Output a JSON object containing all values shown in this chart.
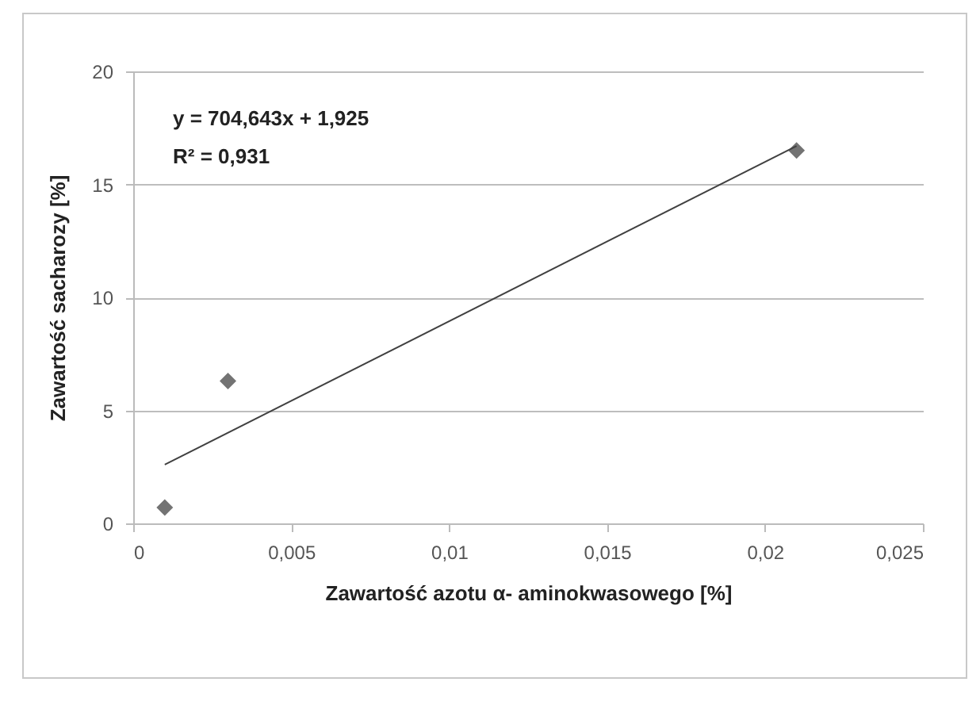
{
  "chart_data": {
    "type": "scatter",
    "xlabel": "Zawartość azotu α- aminokwasowego [%]",
    "ylabel": "Zawartość sacharozy [%]",
    "x": [
      0.001,
      0.003,
      0.021
    ],
    "series": [
      {
        "color": "#737373",
        "values": [
          0.7,
          6.3,
          16.5
        ],
        "marker": "diamond"
      },
      {
        "type": "line",
        "color": "#404040",
        "x": [
          0.001,
          0.021
        ],
        "values": [
          2.6,
          16.7
        ],
        "line_style": "solid"
      }
    ],
    "xlim": [
      0,
      0.025
    ],
    "xticks": [
      0,
      {
        "value": 0.005,
        "label": "0,005"
      },
      {
        "value": 0.01,
        "label": "0,01"
      },
      {
        "value": 0.015,
        "label": "0,015"
      },
      {
        "value": 0.02,
        "label": "0,02"
      },
      {
        "value": 0.025,
        "label": "0,025"
      }
    ],
    "ylim": [
      0,
      20
    ],
    "yticks": [
      0,
      5,
      10,
      15,
      20
    ],
    "grid": "y",
    "annotations": [
      "y = 704,643x + 1,925",
      "R² = 0,931"
    ]
  }
}
